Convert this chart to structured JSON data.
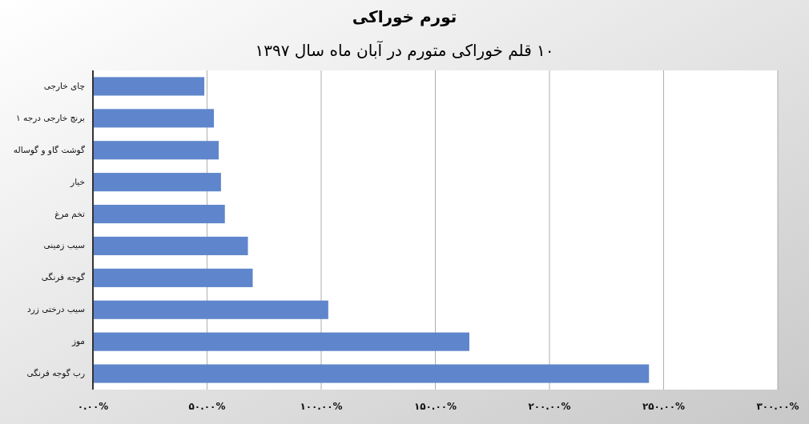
{
  "chart_data": {
    "type": "bar",
    "orientation": "horizontal",
    "title": "تورم خوراکی",
    "subtitle": "۱۰ قلم خوراکی متورم در آبان ماه سال ۱۳۹۷",
    "categories": [
      "چای خارجی",
      "برنج خارجی درجه ۱",
      "گوشت گاو و گوساله",
      "خیار",
      "تخم مرغ",
      "سیب زمینی",
      "گوجه فرنگی",
      "سیب درختی زرد",
      "موز",
      "رب گوجه فرنگی"
    ],
    "values": [
      48.8,
      53,
      55.1,
      56.1,
      57.8,
      67.9,
      70,
      103.1,
      164.9,
      243.6
    ],
    "color": "#5f86cc",
    "xlim": [
      0,
      300
    ],
    "xticks": [
      {
        "value": 0,
        "label": "۰.۰۰%"
      },
      {
        "value": 50,
        "label": "۵۰.۰۰%"
      },
      {
        "value": 100,
        "label": "۱۰۰.۰۰%"
      },
      {
        "value": 150,
        "label": "۱۵۰.۰۰%"
      },
      {
        "value": 200,
        "label": "۲۰۰.۰۰%"
      },
      {
        "value": 250,
        "label": "۲۵۰.۰۰%"
      },
      {
        "value": 300,
        "label": "۳۰۰.۰۰%"
      }
    ],
    "grid": "x"
  }
}
